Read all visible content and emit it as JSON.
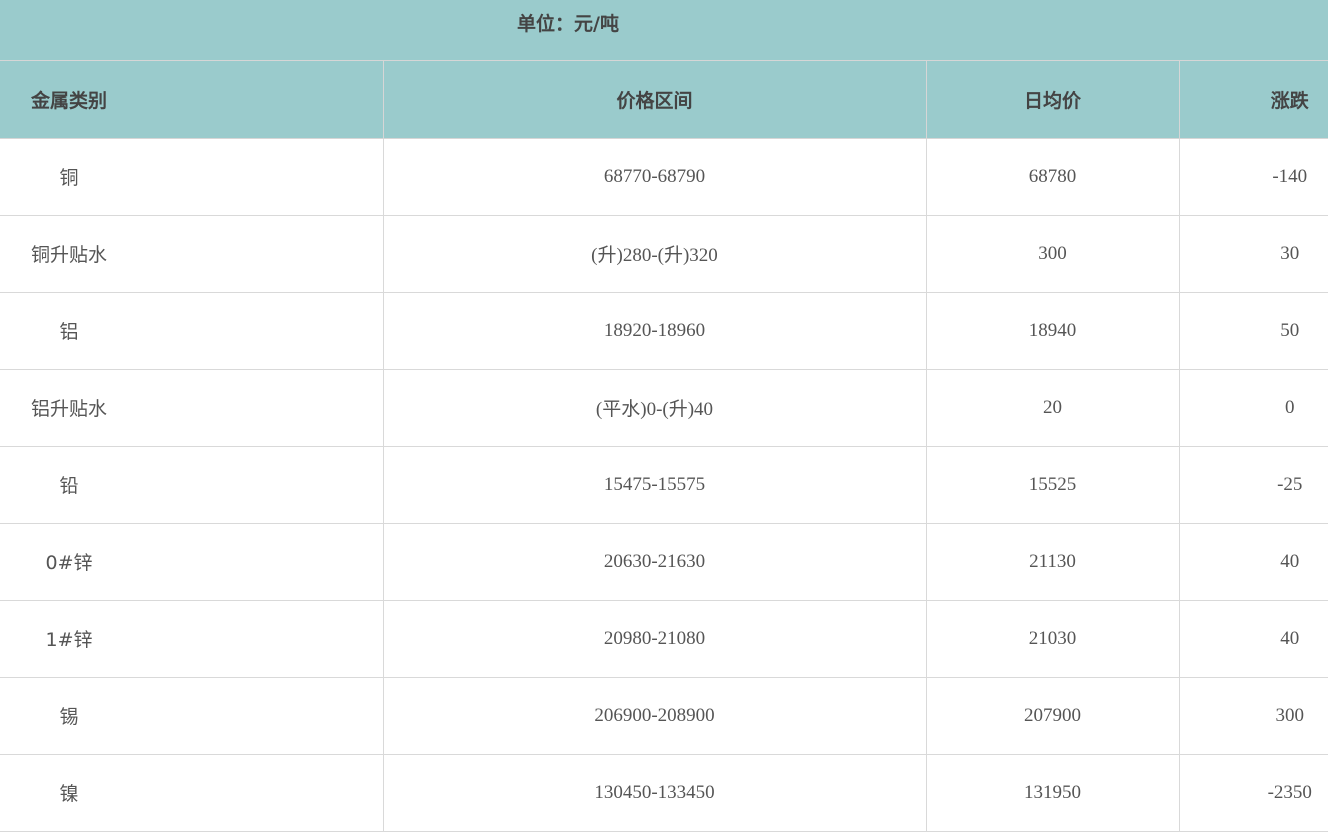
{
  "unit_label": "单位：元/吨",
  "headers": [
    "金属类别",
    "价格区间",
    "日均价",
    "涨跌"
  ],
  "rows": [
    [
      "铜",
      "68770-68790",
      "68780",
      "-140"
    ],
    [
      "铜升贴水",
      "(升)280-(升)320",
      "300",
      "30"
    ],
    [
      "铝",
      "18920-18960",
      "18940",
      "50"
    ],
    [
      "铝升贴水",
      "(平水)0-(升)40",
      "20",
      "0"
    ],
    [
      "铅",
      "15475-15575",
      "15525",
      "-25"
    ],
    [
      "0#锌",
      "20630-21630",
      "21130",
      "40"
    ],
    [
      "1#锌",
      "20980-21080",
      "21030",
      "40"
    ],
    [
      "锡",
      "206900-208900",
      "207900",
      "300"
    ],
    [
      "镍",
      "130450-133450",
      "131950",
      "-2350"
    ]
  ]
}
